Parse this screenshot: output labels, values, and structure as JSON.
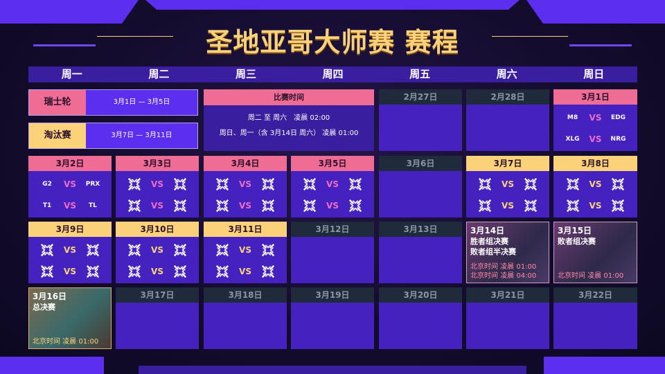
{
  "title": "圣地亚哥大师赛 赛程",
  "weekdays": [
    "周一",
    "周二",
    "周三",
    "周四",
    "周五",
    "周六",
    "周日"
  ],
  "colors": {
    "pink": "#ef6c95",
    "yellow": "#fbd27a",
    "grey": "#1f2b3a",
    "purple": "#4522c0",
    "accent": "#5b2ef0"
  },
  "stages": [
    {
      "label": "瑞士轮",
      "dates": "3月1日 — 3月5日",
      "color": "pink"
    },
    {
      "label": "淘汰赛",
      "dates": "3月7日 — 3月11日",
      "color": "yellow"
    }
  ],
  "match_time": {
    "header": "比赛时间",
    "line1": "周二 至 周六　凌晨 02:00",
    "line2": "周日、周一（含 3月14日 周六） 凌晨 01:00"
  },
  "vs": "VS",
  "cells": [
    {
      "row": 0,
      "col": 4,
      "date": "2月27日",
      "type": "grey"
    },
    {
      "row": 0,
      "col": 5,
      "date": "2月28日",
      "type": "grey"
    },
    {
      "row": 0,
      "col": 6,
      "date": "3月1日",
      "type": "pink",
      "matches": [
        [
          "M8",
          "EDG"
        ],
        [
          "XLG",
          "NRG"
        ]
      ]
    },
    {
      "row": 1,
      "col": 0,
      "date": "3月2日",
      "type": "pink",
      "matches": [
        [
          "G2",
          "PRX"
        ],
        [
          "T1",
          "TL"
        ]
      ]
    },
    {
      "row": 1,
      "col": 1,
      "date": "3月3日",
      "type": "pink",
      "matches": [
        [
          "TBD",
          "TBD"
        ],
        [
          "TBD",
          "TBD"
        ]
      ]
    },
    {
      "row": 1,
      "col": 2,
      "date": "3月4日",
      "type": "pink",
      "matches": [
        [
          "TBD",
          "TBD"
        ],
        [
          "TBD",
          "TBD"
        ]
      ]
    },
    {
      "row": 1,
      "col": 3,
      "date": "3月5日",
      "type": "pink",
      "matches": [
        [
          "TBD",
          "TBD"
        ],
        [
          "TBD",
          "TBD"
        ]
      ]
    },
    {
      "row": 1,
      "col": 4,
      "date": "3月6日",
      "type": "grey"
    },
    {
      "row": 1,
      "col": 5,
      "date": "3月7日",
      "type": "yellow",
      "matches": [
        [
          "TBD",
          "TBD"
        ],
        [
          "TBD",
          "TBD"
        ]
      ]
    },
    {
      "row": 1,
      "col": 6,
      "date": "3月8日",
      "type": "yellow",
      "matches": [
        [
          "TBD",
          "TBD"
        ],
        [
          "TBD",
          "TBD"
        ]
      ]
    },
    {
      "row": 2,
      "col": 0,
      "date": "3月9日",
      "type": "yellow",
      "matches": [
        [
          "TBD",
          "TBD"
        ],
        [
          "TBD",
          "TBD"
        ]
      ]
    },
    {
      "row": 2,
      "col": 1,
      "date": "3月10日",
      "type": "yellow",
      "matches": [
        [
          "TBD",
          "TBD"
        ],
        [
          "TBD",
          "TBD"
        ]
      ]
    },
    {
      "row": 2,
      "col": 2,
      "date": "3月11日",
      "type": "yellow",
      "matches": [
        [
          "TBD",
          "TBD"
        ],
        [
          "TBD",
          "TBD"
        ]
      ]
    },
    {
      "row": 2,
      "col": 3,
      "date": "3月12日",
      "type": "grey"
    },
    {
      "row": 2,
      "col": 4,
      "date": "3月13日",
      "type": "grey"
    },
    {
      "row": 2,
      "col": 5,
      "date": "3月14日",
      "type": "image",
      "titles": [
        "胜者组决赛",
        "败者组半决赛"
      ],
      "times": [
        "北京时间 凌晨 01:00",
        "北京时间 凌晨 04:00"
      ]
    },
    {
      "row": 2,
      "col": 6,
      "date": "3月15日",
      "type": "image",
      "titles": [
        "败者组决赛"
      ],
      "times": [
        "北京时间 凌晨 01:00"
      ]
    },
    {
      "row": 3,
      "col": 0,
      "date": "3月16日",
      "type": "image-gold",
      "titles": [
        "总决赛"
      ],
      "times": [
        "北京时间 凌晨 01:00"
      ]
    },
    {
      "row": 3,
      "col": 1,
      "date": "3月17日",
      "type": "grey"
    },
    {
      "row": 3,
      "col": 2,
      "date": "3月18日",
      "type": "grey"
    },
    {
      "row": 3,
      "col": 3,
      "date": "3月19日",
      "type": "grey"
    },
    {
      "row": 3,
      "col": 4,
      "date": "3月20日",
      "type": "grey"
    },
    {
      "row": 3,
      "col": 5,
      "date": "3月21日",
      "type": "grey"
    },
    {
      "row": 3,
      "col": 6,
      "date": "3月22日",
      "type": "grey"
    }
  ]
}
